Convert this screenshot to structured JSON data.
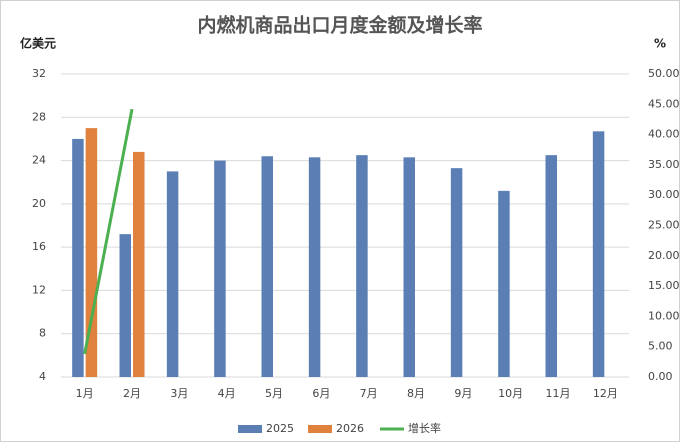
{
  "chart_data": {
    "type": "bar-line",
    "title": "内燃机商品出口月度金额及增长率",
    "y_label": "亿美元",
    "y2_label": "%",
    "categories": [
      "1月",
      "2月",
      "3月",
      "4月",
      "5月",
      "6月",
      "7月",
      "8月",
      "9月",
      "10月",
      "11月",
      "12月"
    ],
    "series": [
      {
        "name": "2025",
        "type": "bar",
        "color": "#5b7fb5",
        "values": [
          26.0,
          17.2,
          23.0,
          24.0,
          24.4,
          24.3,
          24.5,
          24.3,
          23.3,
          21.2,
          24.5,
          26.7
        ]
      },
      {
        "name": "2026",
        "type": "bar",
        "color": "#e0813e",
        "values": [
          27.0,
          24.8,
          null,
          null,
          null,
          null,
          null,
          null,
          null,
          null,
          null,
          null
        ]
      },
      {
        "name": "增长率",
        "type": "line",
        "axis": "y2",
        "color": "#4caf50",
        "values": [
          3.8,
          44.2,
          null,
          null,
          null,
          null,
          null,
          null,
          null,
          null,
          null,
          null
        ]
      }
    ],
    "ylim": [
      4,
      32
    ],
    "yticks": [
      4,
      8,
      12,
      16,
      20,
      24,
      28,
      32
    ],
    "y2lim": [
      0,
      50
    ],
    "y2ticks": [
      {
        "value": 0,
        "label": "0.00"
      },
      {
        "value": 5,
        "label": "5.00"
      },
      {
        "value": 10,
        "label": "10.00"
      },
      {
        "value": 15,
        "label": "15.00"
      },
      {
        "value": 20,
        "label": "20.00"
      },
      {
        "value": 25,
        "label": "25.00"
      },
      {
        "value": 30,
        "label": "30.00"
      },
      {
        "value": 35,
        "label": "35.00"
      },
      {
        "value": 40,
        "label": "40.00"
      },
      {
        "value": 45,
        "label": "45.00"
      },
      {
        "value": 50,
        "label": "50.00"
      }
    ],
    "grid": true,
    "legend": "bottom"
  }
}
